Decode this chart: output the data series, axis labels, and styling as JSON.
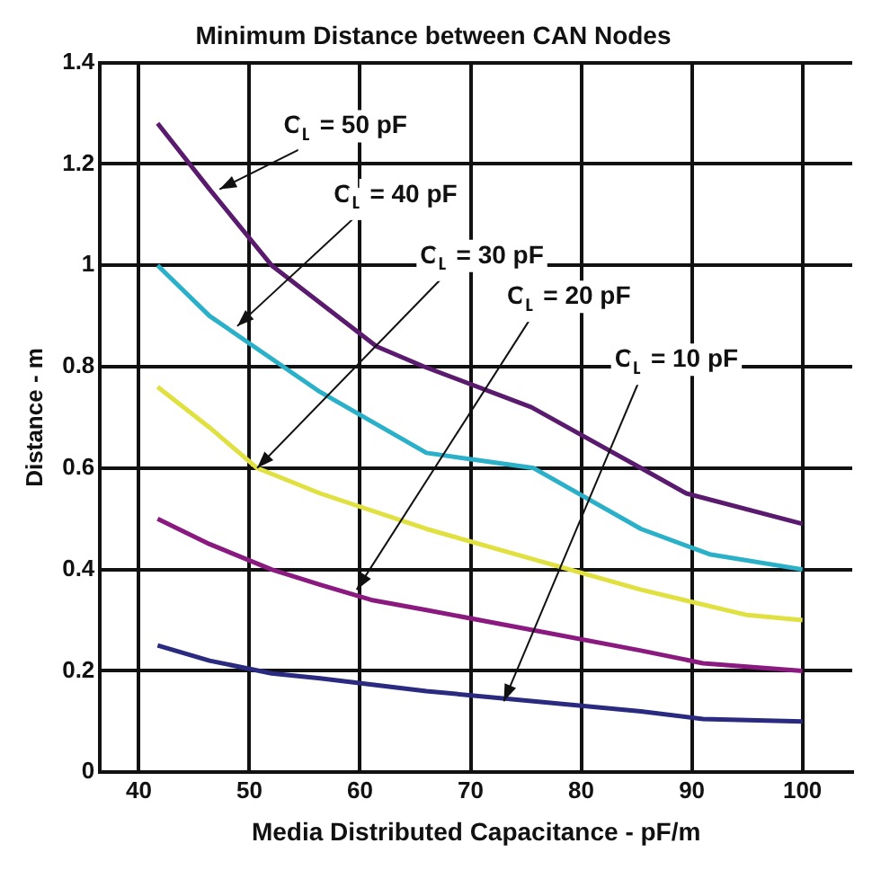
{
  "chart_data": {
    "type": "line",
    "title": "Minimum Distance between CAN Nodes",
    "xlabel": "Media Distributed Capacitance - pF/m",
    "ylabel": "Distance - m",
    "xlim": [
      36.5,
      104.5
    ],
    "xticks": [
      40,
      50,
      60,
      70,
      80,
      90,
      100
    ],
    "ylim": [
      0,
      1.4
    ],
    "yticks": [
      0,
      0.2,
      0.4,
      0.6,
      0.8,
      1,
      1.2,
      1.4
    ],
    "grid": true,
    "legend": false,
    "marker": "none",
    "line_style": "solid",
    "series": [
      {
        "color": "#5a1a6e",
        "x": [
          41.7,
          46.4,
          52,
          61.5,
          65.8,
          75.5,
          85.4,
          89.5,
          100
        ],
        "values": [
          1.28,
          1.15,
          1.0,
          0.84,
          0.8,
          0.72,
          0.6,
          0.55,
          0.49
        ]
      },
      {
        "color": "#2ab0c8",
        "x": [
          41.7,
          46.4,
          56.4,
          66,
          75.7,
          85.4,
          91.6,
          100
        ],
        "values": [
          1.0,
          0.9,
          0.75,
          0.63,
          0.6,
          0.48,
          0.43,
          0.4
        ]
      },
      {
        "color": "#e0e040",
        "x": [
          41.7,
          46.4,
          50.7,
          56.4,
          66,
          75.7,
          85.4,
          95,
          100
        ],
        "values": [
          0.76,
          0.68,
          0.6,
          0.55,
          0.48,
          0.42,
          0.36,
          0.31,
          0.3
        ]
      },
      {
        "color": "#8a1a80",
        "x": [
          41.7,
          46.4,
          52,
          56.4,
          61,
          66,
          75.7,
          85.4,
          91,
          100
        ],
        "values": [
          0.5,
          0.45,
          0.4,
          0.37,
          0.34,
          0.32,
          0.28,
          0.24,
          0.215,
          0.2
        ]
      },
      {
        "color": "#2a2a80",
        "x": [
          41.7,
          46.4,
          52,
          56.4,
          66,
          75.7,
          85.4,
          91,
          100
        ],
        "values": [
          0.25,
          0.22,
          0.195,
          0.185,
          0.16,
          0.14,
          0.12,
          0.105,
          0.1
        ]
      }
    ],
    "annotations": [
      {
        "text": "C$_{L}$ = 50 pF",
        "x": 47.3,
        "y": 1.15
      },
      {
        "text": "C$_{L}$ = 40 pF",
        "x": 48.9,
        "y": 0.88
      },
      {
        "text": "C$_{L}$ = 30 pF",
        "x": 50.7,
        "y": 0.6
      },
      {
        "text": "C$_{L}$ = 20 pF",
        "x": 59.7,
        "y": 0.36
      },
      {
        "text": "C$_{L}$ = 10 pF",
        "x": 73,
        "y": 0.14
      }
    ]
  }
}
